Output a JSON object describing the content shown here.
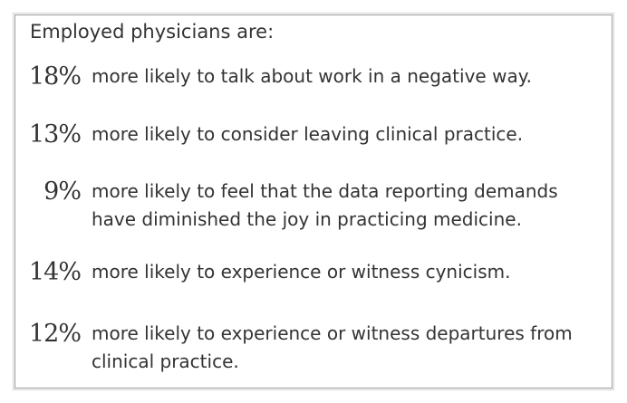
{
  "heading": "Employed physicians are:",
  "stats": [
    {
      "percent": "18%",
      "text": "more likely to talk about work in a negative way."
    },
    {
      "percent": "13%",
      "text": "more likely to consider leaving clinical practice."
    },
    {
      "percent": "9%",
      "text": "more likely to feel that the data reporting demands have diminished the joy in practicing medicine."
    },
    {
      "percent": "14%",
      "text": "more likely to experience or witness cynicism."
    },
    {
      "percent": "12%",
      "text": "more likely to experience or witness departures from clinical practice."
    }
  ]
}
